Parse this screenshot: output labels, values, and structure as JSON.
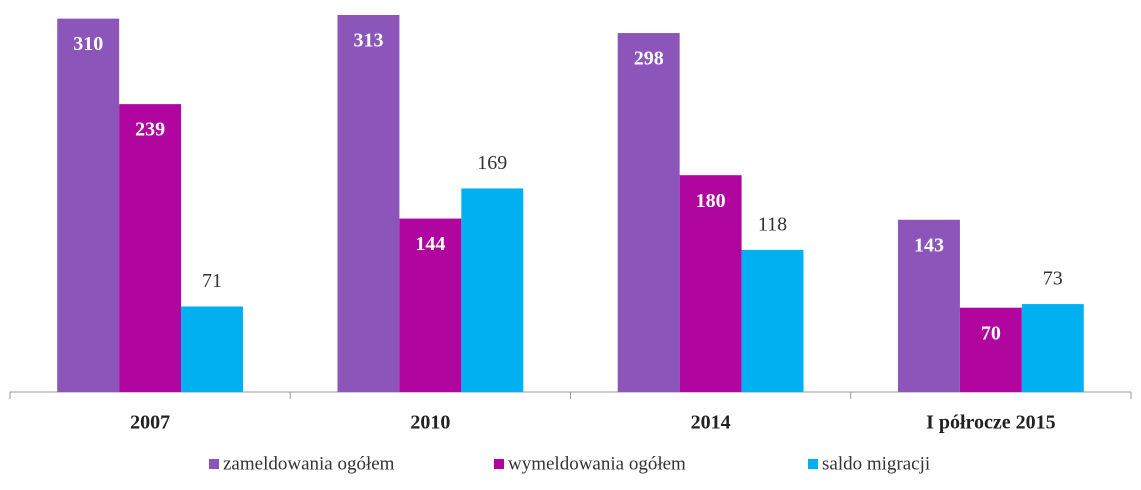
{
  "chart_data": {
    "type": "bar",
    "categories": [
      "2007",
      "2010",
      "2014",
      "I półrocze 2015"
    ],
    "series": [
      {
        "name": "zameldowania ogółem",
        "color": "#8b55b9",
        "values": [
          310,
          313,
          298,
          143
        ]
      },
      {
        "name": "wymeldowania ogółem",
        "color": "#b0069f",
        "values": [
          239,
          144,
          180,
          70
        ]
      },
      {
        "name": "saldo migracji",
        "color": "#00b0f0",
        "values": [
          71,
          169,
          118,
          73
        ]
      }
    ],
    "legend": "bottom"
  }
}
